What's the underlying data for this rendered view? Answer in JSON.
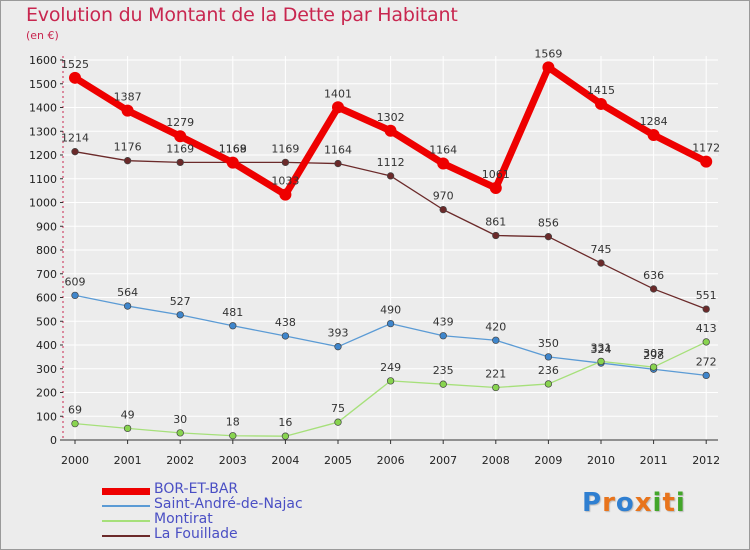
{
  "header": {
    "title": "Evolution du Montant de la Dette par Habitant",
    "subtitle": "(en €)"
  },
  "logo": {
    "text": "Proxiti",
    "colors": [
      "#2f7fd1",
      "#e8741c",
      "#2f7fd1",
      "#e8741c",
      "#43a62a",
      "#e8741c",
      "#43a62a"
    ]
  },
  "colors": {
    "title": "#c8264f",
    "axis": "#c8264f",
    "grid": "#ffffff"
  },
  "chart_data": {
    "type": "line",
    "title": "Evolution du Montant de la Dette par Habitant",
    "subtitle": "(en €)",
    "xlabel": "",
    "ylabel": "",
    "x": [
      "2000",
      "2001",
      "2002",
      "2003",
      "2004",
      "2005",
      "2006",
      "2007",
      "2008",
      "2009",
      "2010",
      "2011",
      "2012"
    ],
    "ylim": [
      0,
      1600
    ],
    "yticks": [
      0,
      100,
      200,
      300,
      400,
      500,
      600,
      700,
      800,
      900,
      1000,
      1100,
      1200,
      1300,
      1400,
      1500,
      1600
    ],
    "grid": true,
    "legend_position": "bottom-left",
    "series": [
      {
        "name": "BOR-ET-BAR",
        "color": "#ee0000",
        "marker": "#ee0000",
        "width": 7,
        "values": [
          1525,
          1387,
          1279,
          1168,
          1033,
          1401,
          1302,
          1164,
          1061,
          1569,
          1415,
          1284,
          1172
        ]
      },
      {
        "name": "Saint-André-de-Najac",
        "color": "#5b9bd5",
        "marker": "#3f86cc",
        "width": 1.3,
        "values": [
          609,
          564,
          527,
          481,
          438,
          393,
          490,
          439,
          420,
          350,
          324,
          298,
          272
        ]
      },
      {
        "name": "Montirat",
        "color": "#a6e07a",
        "marker": "#88d44f",
        "width": 1.3,
        "values": [
          69,
          49,
          30,
          18,
          16,
          75,
          249,
          235,
          221,
          236,
          331,
          307,
          413
        ]
      },
      {
        "name": "La Fouillade",
        "color": "#6b2a2a",
        "marker": "#6b2a2a",
        "width": 1.3,
        "values": [
          1214,
          1176,
          1169,
          1169,
          1169,
          1164,
          1112,
          970,
          861,
          856,
          745,
          636,
          551
        ]
      }
    ]
  }
}
